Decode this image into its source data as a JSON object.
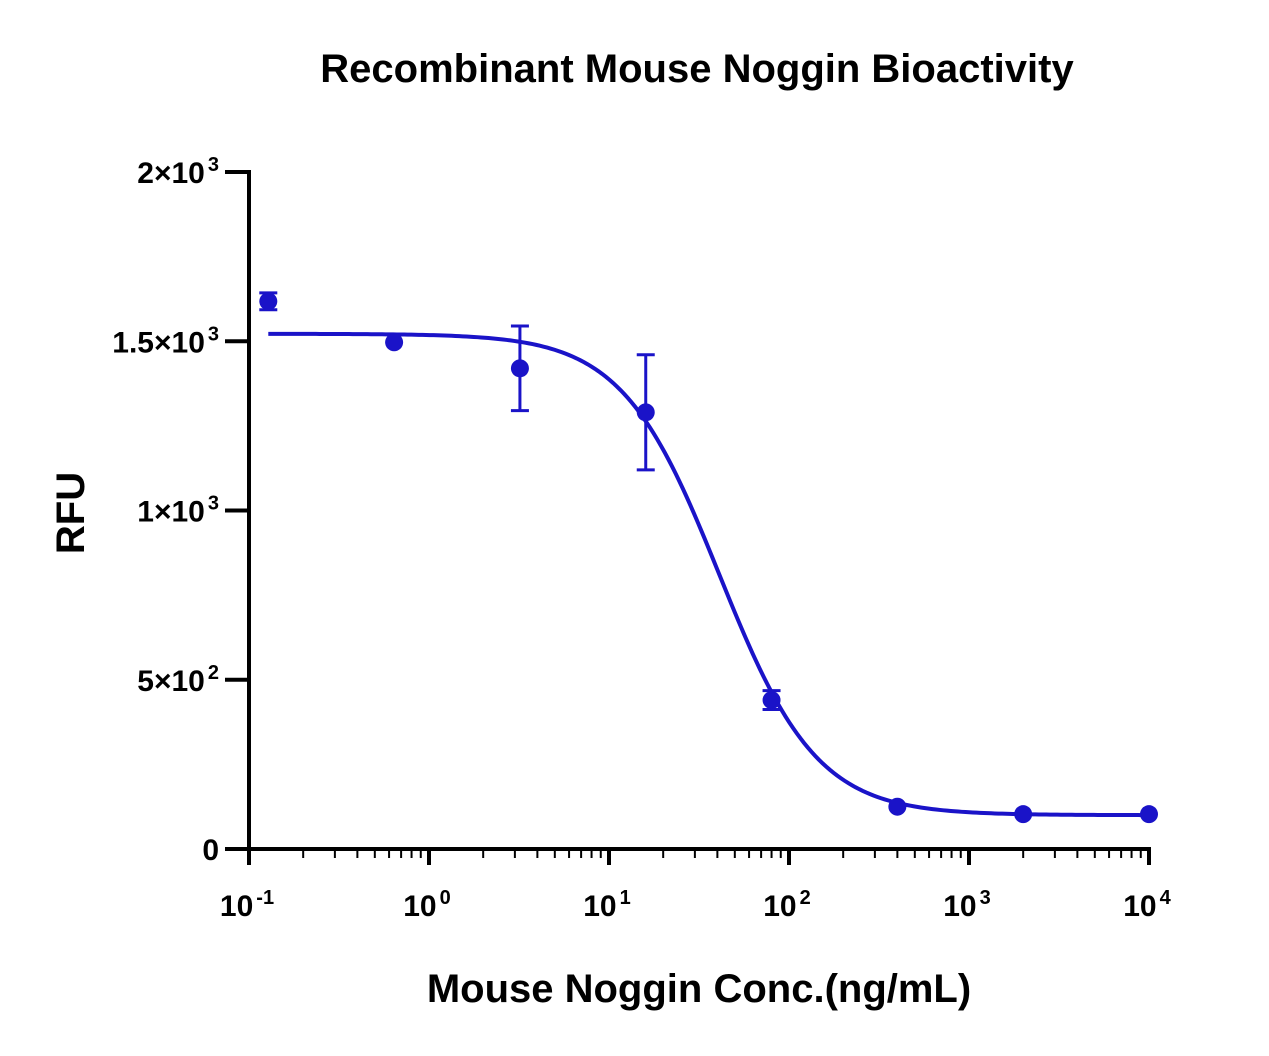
{
  "chart_data": {
    "type": "scatter",
    "title": "Recombinant Mouse Noggin Bioactivity",
    "xlabel": "Mouse Noggin Conc.(ng/mL)",
    "ylabel": "RFU",
    "xscale": "log",
    "xlim": [
      0.1,
      10000
    ],
    "ylim": [
      0,
      2000
    ],
    "grid": false,
    "legend": "none",
    "colors": {
      "series": "#1a13c8",
      "axes": "#000000"
    },
    "x_ticks": [
      {
        "base": "10",
        "exp": "-1",
        "value": 0.1
      },
      {
        "base": "10",
        "exp": "0",
        "value": 1
      },
      {
        "base": "10",
        "exp": "1",
        "value": 10
      },
      {
        "base": "10",
        "exp": "2",
        "value": 100
      },
      {
        "base": "10",
        "exp": "3",
        "value": 1000
      },
      {
        "base": "10",
        "exp": "4",
        "value": 10000
      }
    ],
    "y_ticks": [
      {
        "base": "0",
        "exp": "",
        "value": 0
      },
      {
        "base": "5×10",
        "exp": "2",
        "value": 500
      },
      {
        "base": "1×10",
        "exp": "3",
        "value": 1000
      },
      {
        "base": "1.5×10",
        "exp": "3",
        "value": 1500
      },
      {
        "base": "2×10",
        "exp": "3",
        "value": 2000
      }
    ],
    "series": [
      {
        "points": [
          {
            "x": 0.128,
            "y": 1618,
            "err": 25
          },
          {
            "x": 0.64,
            "y": 1497,
            "err": 0
          },
          {
            "x": 3.2,
            "y": 1420,
            "err": 125
          },
          {
            "x": 16,
            "y": 1290,
            "err": 170
          },
          {
            "x": 80,
            "y": 440,
            "err": 28
          },
          {
            "x": 400,
            "y": 125,
            "err": 0
          },
          {
            "x": 2000,
            "y": 103,
            "err": 0
          },
          {
            "x": 10000,
            "y": 103,
            "err": 0
          }
        ],
        "fit": {
          "model": "4PL",
          "top": 1522,
          "bottom": 100,
          "ec50": 41,
          "hill": 1.6,
          "x_range": [
            0.128,
            10000
          ]
        }
      }
    ]
  }
}
